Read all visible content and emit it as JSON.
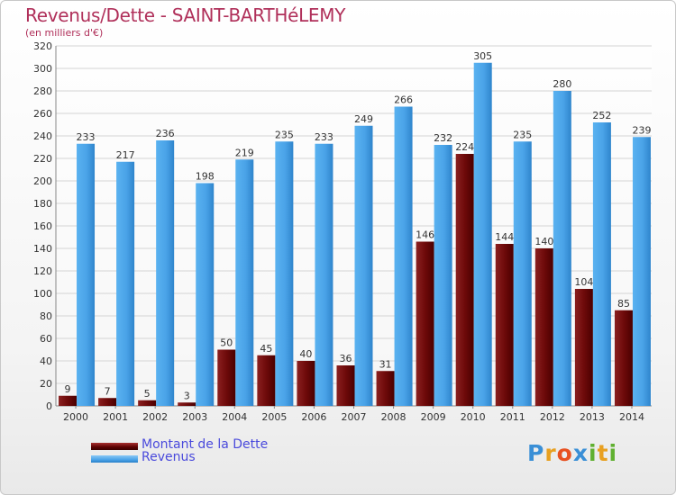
{
  "header": {
    "title": "Revenus/Dette - SAINT-BARTHéLEMY",
    "subtitle": "(en milliers d'€)"
  },
  "legend": {
    "items": [
      {
        "label": "Montant de la Dette",
        "color": "#6e0a0a"
      },
      {
        "label": "Revenus",
        "color": "#4aa3e8"
      }
    ]
  },
  "logo": {
    "text": "Proxiti",
    "letters": [
      "P",
      "r",
      "o",
      "x",
      "i",
      "t",
      "i"
    ],
    "colors": [
      "#3a8fd6",
      "#e8a020",
      "#e85020",
      "#3a8fd6",
      "#60b030",
      "#e8a020",
      "#60b030"
    ]
  },
  "chart_data": {
    "type": "bar",
    "categories": [
      "2000",
      "2001",
      "2002",
      "2003",
      "2004",
      "2005",
      "2006",
      "2007",
      "2008",
      "2009",
      "2010",
      "2011",
      "2012",
      "2013",
      "2014"
    ],
    "series": [
      {
        "name": "Montant de la Dette",
        "color": "#6e0a0a",
        "values": [
          9,
          7,
          5,
          3,
          50,
          45,
          40,
          36,
          31,
          146,
          224,
          144,
          140,
          104,
          85
        ]
      },
      {
        "name": "Revenus",
        "color": "#4aa3e8",
        "values": [
          233,
          217,
          236,
          198,
          219,
          235,
          233,
          249,
          266,
          232,
          305,
          235,
          280,
          252,
          239
        ]
      }
    ],
    "ylim": [
      0,
      320
    ],
    "yticks": [
      0,
      20,
      40,
      60,
      80,
      100,
      120,
      140,
      160,
      180,
      200,
      220,
      240,
      260,
      280,
      300,
      320
    ],
    "grid": true
  }
}
